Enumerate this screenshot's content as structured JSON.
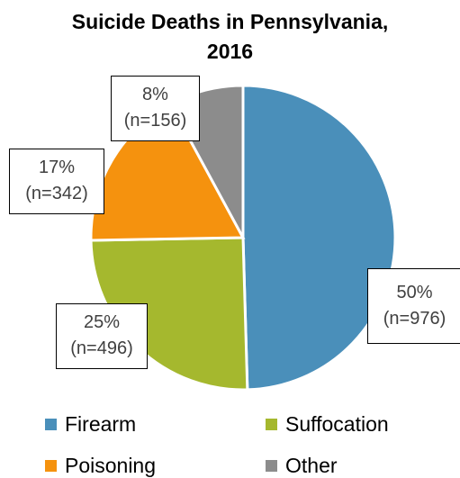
{
  "chart_data": {
    "type": "pie",
    "title": "Suicide Deaths in Pennsylvania, 2016",
    "title_lines": [
      "Suicide Deaths in Pennsylvania,",
      "2016"
    ],
    "slices": [
      {
        "name": "Firearm",
        "value": 976,
        "percent": 50,
        "color": "#4a8fba",
        "label_pct": "50%",
        "label_n": "(n=976)"
      },
      {
        "name": "Suffocation",
        "value": 496,
        "percent": 25,
        "color": "#a5b82e",
        "label_pct": "25%",
        "label_n": "(n=496)"
      },
      {
        "name": "Poisoning",
        "value": 342,
        "percent": 17,
        "color": "#f5920e",
        "label_pct": "17%",
        "label_n": "(n=342)"
      },
      {
        "name": "Other",
        "value": 156,
        "percent": 8,
        "color": "#8c8c8c",
        "label_pct": "8%",
        "label_n": "(n=156)"
      }
    ],
    "legend_placement": "bottom",
    "legend": [
      "Firearm",
      "Suffocation",
      "Poisoning",
      "Other"
    ]
  }
}
